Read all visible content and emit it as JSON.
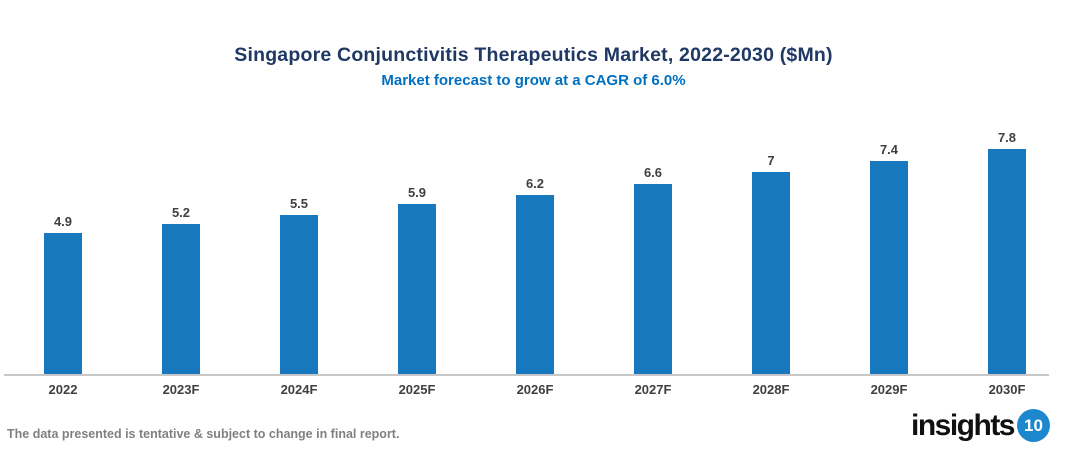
{
  "header": {
    "title": "Singapore Conjunctivitis Therapeutics Market, 2022-2030 ($Mn)",
    "subtitle": "Market forecast to grow at a CAGR of 6.0%"
  },
  "chart_data": {
    "type": "bar",
    "title": "Singapore Conjunctivitis Therapeutics Market, 2022-2030 ($Mn)",
    "subtitle": "Market forecast to grow at a CAGR of 6.0%",
    "categories": [
      "2022",
      "2023F",
      "2024F",
      "2025F",
      "2026F",
      "2027F",
      "2028F",
      "2029F",
      "2030F"
    ],
    "values": [
      4.9,
      5.2,
      5.5,
      5.9,
      6.2,
      6.6,
      7,
      7.4,
      7.8
    ],
    "value_labels": [
      "4.9",
      "5.2",
      "5.5",
      "5.9",
      "6.2",
      "6.6",
      "7",
      "7.4",
      "7.8"
    ],
    "xlabel": "",
    "ylabel": "",
    "ylim": [
      0,
      8.4
    ],
    "grid": false,
    "legend": false,
    "bar_color": "#1878BE"
  },
  "colors": {
    "bar": "#1878BE",
    "title": "#1F3864",
    "subtitle": "#0070C0",
    "data_label": "#404040",
    "axis_line": "#C8C8C8",
    "footer_text": "#808080",
    "logo_badge_bg": "#1C87CC"
  },
  "footer": {
    "disclaimer": "The data presented is tentative & subject to change in final report.",
    "logo_text": "insights",
    "logo_badge": "10"
  }
}
